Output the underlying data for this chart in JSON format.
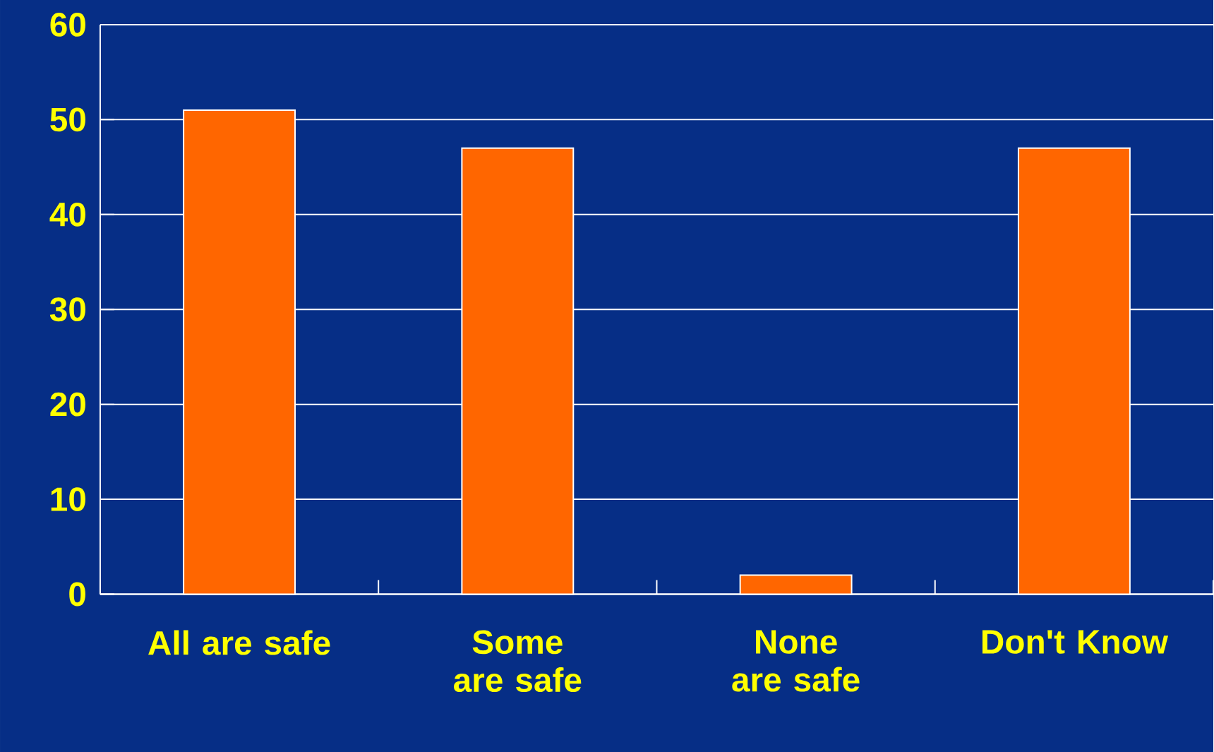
{
  "chart_data": {
    "type": "bar",
    "categories": [
      "All are safe",
      "Some are safe",
      "None are safe",
      "Don't Know"
    ],
    "values": [
      51,
      47,
      2,
      47
    ],
    "color": "#ff6600",
    "ylim": [
      0,
      60
    ],
    "yticks": [
      0,
      10,
      20,
      30,
      40,
      50,
      60
    ],
    "grid": "y"
  }
}
